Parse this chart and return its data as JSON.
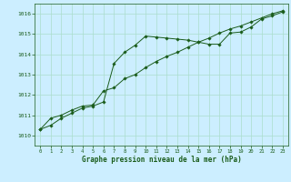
{
  "title": "Graphe pression niveau de la mer (hPa)",
  "background_color": "#cceeff",
  "grid_color": "#aaddcc",
  "line_color": "#1a5c1a",
  "xlim": [
    -0.5,
    23.5
  ],
  "ylim": [
    1009.5,
    1016.5
  ],
  "yticks": [
    1010,
    1011,
    1012,
    1013,
    1014,
    1015,
    1016
  ],
  "xticks": [
    0,
    1,
    2,
    3,
    4,
    5,
    6,
    7,
    8,
    9,
    10,
    11,
    12,
    13,
    14,
    15,
    16,
    17,
    18,
    19,
    20,
    21,
    22,
    23
  ],
  "line1_x": [
    0,
    1,
    2,
    3,
    4,
    5,
    6,
    7,
    8,
    9,
    10,
    11,
    12,
    13,
    14,
    15,
    16,
    17,
    18,
    19,
    20,
    21,
    22,
    23
  ],
  "line1_y": [
    1010.3,
    1010.5,
    1010.85,
    1011.1,
    1011.35,
    1011.45,
    1011.65,
    1013.55,
    1014.1,
    1014.45,
    1014.9,
    1014.85,
    1014.8,
    1014.75,
    1014.7,
    1014.6,
    1014.5,
    1014.5,
    1015.05,
    1015.1,
    1015.35,
    1015.75,
    1015.9,
    1016.1
  ],
  "line2_x": [
    0,
    1,
    2,
    3,
    4,
    5,
    6,
    7,
    8,
    9,
    10,
    11,
    12,
    13,
    14,
    15,
    16,
    17,
    18,
    19,
    20,
    21,
    22,
    23
  ],
  "line2_y": [
    1010.3,
    1010.85,
    1011.0,
    1011.25,
    1011.45,
    1011.5,
    1012.2,
    1012.35,
    1012.8,
    1013.0,
    1013.35,
    1013.65,
    1013.9,
    1014.1,
    1014.35,
    1014.6,
    1014.8,
    1015.05,
    1015.25,
    1015.4,
    1015.6,
    1015.8,
    1016.0,
    1016.15
  ]
}
